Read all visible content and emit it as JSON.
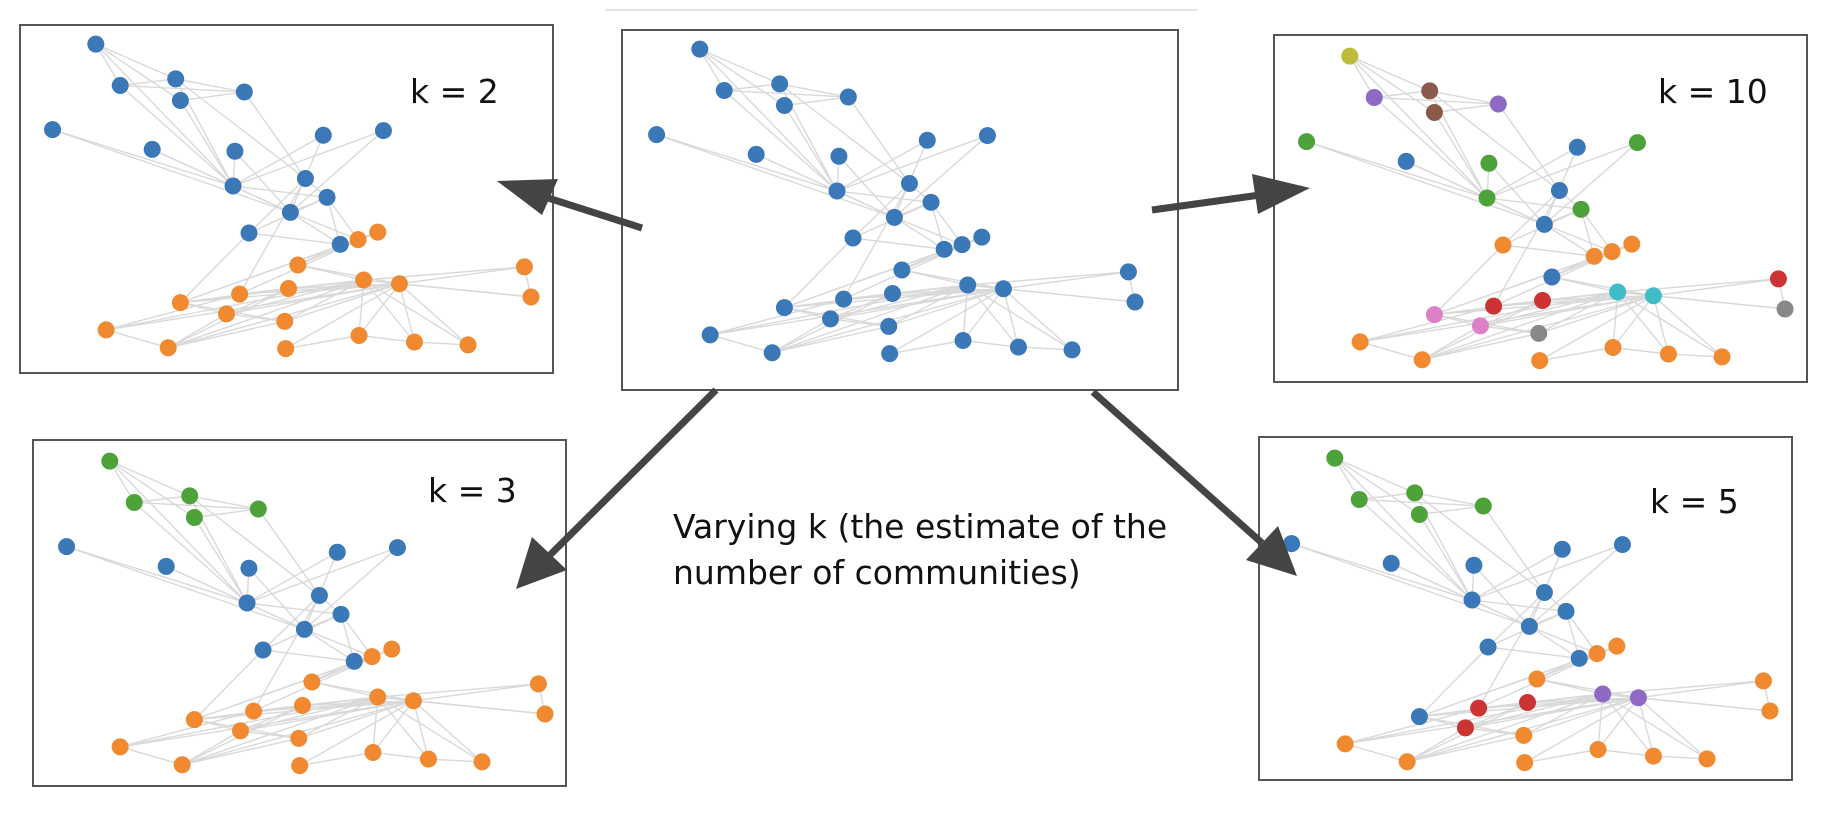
{
  "caption_lines": [
    "Varying k (the estimate of the",
    "number of communities)"
  ],
  "panels": [
    {
      "id": "original",
      "label": "",
      "colors": [
        "#3a78b8"
      ],
      "assignment": []
    },
    {
      "id": "k2",
      "label": "k = 2",
      "colors": [
        "#3a78b8",
        "#f0892f"
      ],
      "assignment": [
        0,
        0,
        0,
        0,
        0,
        0,
        0,
        0,
        0,
        0,
        0,
        0,
        0,
        0,
        0,
        0,
        1,
        1,
        1,
        1,
        1,
        1,
        1,
        1,
        1,
        1,
        1,
        1,
        1,
        1,
        1,
        1,
        1,
        1
      ]
    },
    {
      "id": "k3",
      "label": "k = 3",
      "colors": [
        "#3a78b8",
        "#f0892f",
        "#4ea23a"
      ],
      "assignment": [
        2,
        2,
        2,
        2,
        2,
        0,
        0,
        0,
        0,
        0,
        0,
        0,
        0,
        0,
        0,
        0,
        1,
        1,
        1,
        1,
        1,
        1,
        1,
        1,
        1,
        1,
        1,
        1,
        1,
        1,
        1,
        1,
        1,
        1
      ]
    },
    {
      "id": "k5",
      "label": "k = 5",
      "colors": [
        "#3a78b8",
        "#f0892f",
        "#4ea23a",
        "#cc3333",
        "#8e6ac4"
      ],
      "assignment": [
        2,
        2,
        2,
        2,
        2,
        0,
        0,
        0,
        0,
        0,
        0,
        0,
        0,
        0,
        0,
        0,
        1,
        1,
        1,
        0,
        3,
        3,
        3,
        1,
        4,
        4,
        1,
        1,
        1,
        1,
        1,
        1,
        1,
        1
      ]
    },
    {
      "id": "k10",
      "label": "k = 10",
      "colors": [
        "#3a78b8",
        "#f0892f",
        "#4ea23a",
        "#cc3333",
        "#8e6ac4",
        "#8a5a4a",
        "#dd80c8",
        "#888888",
        "#bcbc3a",
        "#3fbcc8"
      ],
      "assignment": [
        8,
        4,
        5,
        5,
        4,
        2,
        0,
        2,
        0,
        2,
        2,
        0,
        0,
        2,
        1,
        1,
        1,
        1,
        0,
        6,
        3,
        3,
        6,
        7,
        9,
        9,
        1,
        1,
        1,
        1,
        1,
        1,
        3,
        7
      ]
    }
  ],
  "graph": {
    "node_count": 34,
    "edges": [
      [
        0,
        1
      ],
      [
        0,
        2
      ],
      [
        0,
        3
      ],
      [
        1,
        2
      ],
      [
        2,
        4
      ],
      [
        1,
        4
      ],
      [
        1,
        10
      ],
      [
        2,
        10
      ],
      [
        3,
        4
      ],
      [
        3,
        10
      ],
      [
        2,
        12
      ],
      [
        4,
        12
      ],
      [
        0,
        10
      ],
      [
        5,
        10
      ],
      [
        6,
        10
      ],
      [
        7,
        10
      ],
      [
        8,
        10
      ],
      [
        9,
        10
      ],
      [
        5,
        11
      ],
      [
        6,
        11
      ],
      [
        7,
        11
      ],
      [
        8,
        11
      ],
      [
        9,
        11
      ],
      [
        10,
        11
      ],
      [
        10,
        13
      ],
      [
        11,
        13
      ],
      [
        12,
        13
      ],
      [
        12,
        14
      ],
      [
        13,
        14
      ],
      [
        13,
        15
      ],
      [
        14,
        15
      ],
      [
        11,
        15
      ],
      [
        11,
        16
      ],
      [
        15,
        16
      ],
      [
        13,
        16
      ],
      [
        16,
        17
      ],
      [
        17,
        18
      ],
      [
        15,
        18
      ],
      [
        16,
        18
      ],
      [
        18,
        24
      ],
      [
        19,
        24
      ],
      [
        20,
        24
      ],
      [
        21,
        24
      ],
      [
        22,
        24
      ],
      [
        23,
        24
      ],
      [
        25,
        24
      ],
      [
        26,
        24
      ],
      [
        29,
        24
      ],
      [
        30,
        24
      ],
      [
        31,
        24
      ],
      [
        32,
        24
      ],
      [
        33,
        24
      ],
      [
        18,
        25
      ],
      [
        19,
        25
      ],
      [
        20,
        25
      ],
      [
        21,
        25
      ],
      [
        22,
        25
      ],
      [
        23,
        25
      ],
      [
        26,
        25
      ],
      [
        27,
        25
      ],
      [
        28,
        25
      ],
      [
        29,
        25
      ],
      [
        30,
        25
      ],
      [
        31,
        25
      ],
      [
        32,
        25
      ],
      [
        33,
        25
      ],
      [
        19,
        21
      ],
      [
        19,
        22
      ],
      [
        20,
        21
      ],
      [
        21,
        22
      ],
      [
        20,
        26
      ],
      [
        21,
        27
      ],
      [
        22,
        27
      ],
      [
        23,
        27
      ],
      [
        17,
        19
      ],
      [
        17,
        20
      ],
      [
        16,
        19
      ],
      [
        14,
        19
      ],
      [
        12,
        20
      ],
      [
        26,
        27
      ],
      [
        28,
        29
      ],
      [
        29,
        30
      ],
      [
        30,
        31
      ],
      [
        32,
        33
      ],
      [
        24,
        25
      ],
      [
        19,
        23
      ],
      [
        22,
        23
      ],
      [
        27,
        24
      ]
    ]
  }
}
